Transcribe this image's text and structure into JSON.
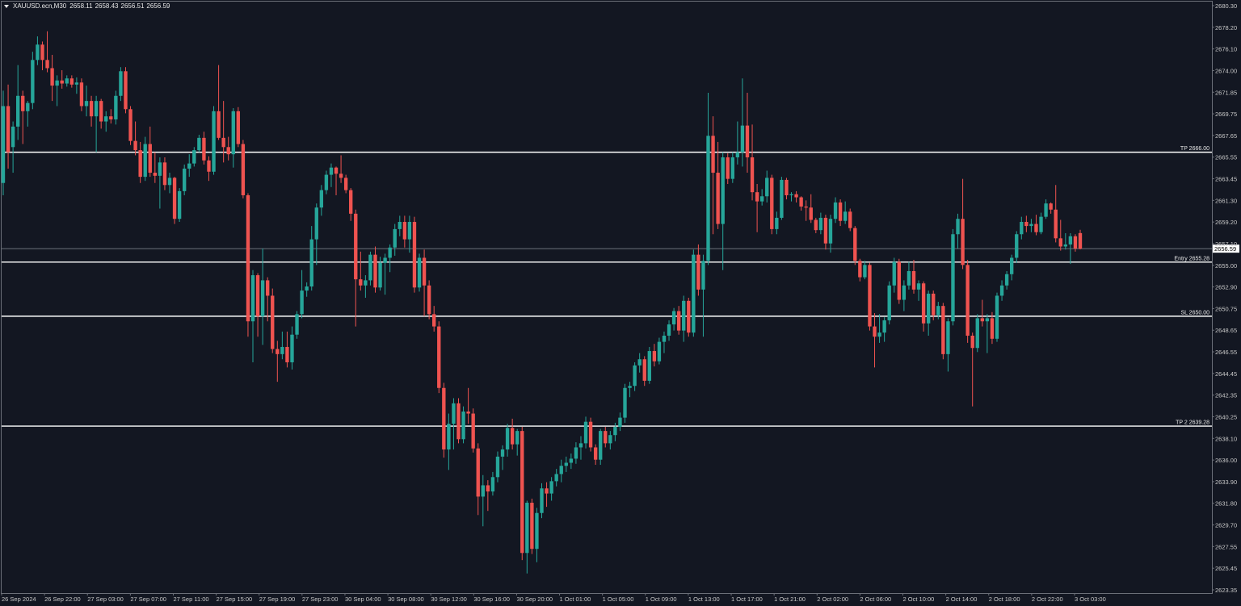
{
  "header": {
    "symbol": "XAUUSD.ecn,M30",
    "open": "2658.11",
    "high": "2658.43",
    "low": "2656.51",
    "close": "2656.59"
  },
  "colors": {
    "background": "#131722",
    "bull": "#26a69a",
    "bear": "#ef5350",
    "level_line": "#ffffff",
    "current_price_line": "#8a8f98",
    "axis_text": "#c8c8c8"
  },
  "chart_data": {
    "type": "candlestick",
    "symbol": "XAUUSD.ecn",
    "timeframe": "M30",
    "ylim": [
      2623.3,
      2680.3
    ],
    "y_ticks": [
      "2680.30",
      "2678.20",
      "2676.10",
      "2674.00",
      "2671.85",
      "2669.75",
      "2667.65",
      "2665.55",
      "2663.45",
      "2661.30",
      "2659.20",
      "2657.10",
      "2655.00",
      "2652.90",
      "2650.75",
      "2648.65",
      "2646.55",
      "2644.45",
      "2642.35",
      "2640.25",
      "2638.10",
      "2636.00",
      "2633.90",
      "2631.80",
      "2629.70",
      "2627.55",
      "2625.45",
      "2623.35"
    ],
    "x_ticks": [
      "26 Sep 2024",
      "26 Sep 22:00",
      "27 Sep 03:00",
      "27 Sep 07:00",
      "27 Sep 11:00",
      "27 Sep 15:00",
      "27 Sep 19:00",
      "27 Sep 23:00",
      "30 Sep 04:00",
      "30 Sep 08:00",
      "30 Sep 12:00",
      "30 Sep 16:00",
      "30 Sep 20:00",
      "1 Oct 01:00",
      "1 Oct 05:00",
      "1 Oct 09:00",
      "1 Oct 13:00",
      "1 Oct 17:00",
      "1 Oct 21:00",
      "2 Oct 02:00",
      "2 Oct 06:00",
      "2 Oct 10:00",
      "2 Oct 14:00",
      "2 Oct 18:00",
      "2 Oct 22:00",
      "3 Oct 03:00"
    ],
    "levels": [
      {
        "label": "TP 2666.00",
        "price": 2666.0
      },
      {
        "label": "Entry 2655.28",
        "price": 2655.28
      },
      {
        "label": "SL 2650.00",
        "price": 2650.0
      },
      {
        "label": "TP 2 2639.28",
        "price": 2639.28
      }
    ],
    "current_price": {
      "label": "2656.59",
      "price": 2656.59
    },
    "ohlc": [
      [
        2663.0,
        2672.0,
        2661.8,
        2670.5
      ],
      [
        2670.5,
        2672.6,
        2664.4,
        2666.0
      ],
      [
        2666.5,
        2669.0,
        2664.0,
        2668.5
      ],
      [
        2668.5,
        2674.5,
        2667.2,
        2671.5
      ],
      [
        2671.5,
        2672.0,
        2666.8,
        2670.0
      ],
      [
        2670.0,
        2671.0,
        2668.5,
        2670.8
      ],
      [
        2670.8,
        2675.8,
        2670.2,
        2675.0
      ],
      [
        2675.0,
        2677.3,
        2674.5,
        2676.5
      ],
      [
        2676.5,
        2676.8,
        2674.0,
        2675.0
      ],
      [
        2675.0,
        2677.8,
        2673.8,
        2674.2
      ],
      [
        2674.2,
        2675.5,
        2671.0,
        2672.5
      ],
      [
        2672.5,
        2673.5,
        2670.5,
        2673.0
      ],
      [
        2673.0,
        2674.0,
        2672.2,
        2672.7
      ],
      [
        2672.7,
        2673.5,
        2672.4,
        2673.2
      ],
      [
        2673.2,
        2673.5,
        2672.3,
        2672.6
      ],
      [
        2672.6,
        2673.3,
        2671.7,
        2672.8
      ],
      [
        2672.8,
        2673.2,
        2670.0,
        2670.5
      ],
      [
        2670.5,
        2672.5,
        2669.5,
        2671.0
      ],
      [
        2671.0,
        2671.5,
        2668.5,
        2669.5
      ],
      [
        2669.5,
        2671.5,
        2666.0,
        2671.0
      ],
      [
        2671.0,
        2671.2,
        2668.3,
        2669.0
      ],
      [
        2669.0,
        2670.0,
        2668.0,
        2669.5
      ],
      [
        2669.5,
        2670.2,
        2668.8,
        2669.2
      ],
      [
        2669.2,
        2672.0,
        2668.7,
        2671.5
      ],
      [
        2671.5,
        2674.3,
        2671.0,
        2673.9
      ],
      [
        2673.9,
        2674.3,
        2669.8,
        2670.2
      ],
      [
        2670.2,
        2670.5,
        2666.7,
        2667.1
      ],
      [
        2667.1,
        2669.0,
        2665.7,
        2666.2
      ],
      [
        2666.2,
        2667.0,
        2663.0,
        2663.6
      ],
      [
        2663.6,
        2667.5,
        2663.2,
        2666.8
      ],
      [
        2666.8,
        2668.5,
        2663.6,
        2664.0
      ],
      [
        2664.0,
        2666.0,
        2663.0,
        2663.7
      ],
      [
        2663.7,
        2665.5,
        2660.5,
        2665.0
      ],
      [
        2665.0,
        2665.5,
        2662.3,
        2662.8
      ],
      [
        2662.8,
        2664.0,
        2662.0,
        2663.5
      ],
      [
        2663.5,
        2663.6,
        2659.0,
        2659.5
      ],
      [
        2659.5,
        2662.5,
        2659.2,
        2662.2
      ],
      [
        2662.2,
        2664.8,
        2661.8,
        2664.4
      ],
      [
        2664.4,
        2665.8,
        2663.6,
        2664.9
      ],
      [
        2664.9,
        2666.5,
        2664.6,
        2666.2
      ],
      [
        2666.2,
        2667.7,
        2666.0,
        2667.4
      ],
      [
        2667.4,
        2668.0,
        2664.8,
        2665.2
      ],
      [
        2665.2,
        2665.6,
        2663.2,
        2664.1
      ],
      [
        2664.1,
        2670.5,
        2663.8,
        2670.0
      ],
      [
        2670.0,
        2674.5,
        2667.2,
        2667.4
      ],
      [
        2667.4,
        2671.0,
        2665.0,
        2666.5
      ],
      [
        2666.5,
        2667.5,
        2665.2,
        2665.8
      ],
      [
        2665.8,
        2670.3,
        2664.5,
        2670.0
      ],
      [
        2670.0,
        2670.4,
        2666.5,
        2666.8
      ],
      [
        2666.8,
        2667.2,
        2661.5,
        2661.8
      ],
      [
        2661.8,
        2662.0,
        2648.0,
        2649.5
      ],
      [
        2649.5,
        2654.5,
        2645.5,
        2654.0
      ],
      [
        2654.0,
        2654.2,
        2648.0,
        2650.0
      ],
      [
        2650.0,
        2656.6,
        2647.2,
        2653.5
      ],
      [
        2653.5,
        2653.8,
        2649.5,
        2652.0
      ],
      [
        2652.0,
        2652.7,
        2646.4,
        2646.8
      ],
      [
        2646.8,
        2647.6,
        2643.6,
        2646.3
      ],
      [
        2646.3,
        2648.5,
        2645.8,
        2647.0
      ],
      [
        2647.0,
        2648.5,
        2645.0,
        2645.5
      ],
      [
        2645.5,
        2649.0,
        2644.8,
        2648.2
      ],
      [
        2648.2,
        2650.5,
        2647.8,
        2650.2
      ],
      [
        2650.2,
        2654.5,
        2649.8,
        2652.5
      ],
      [
        2652.5,
        2653.3,
        2651.9,
        2652.9
      ],
      [
        2652.9,
        2658.8,
        2652.5,
        2657.5
      ],
      [
        2657.5,
        2661.0,
        2655.0,
        2660.6
      ],
      [
        2660.6,
        2662.8,
        2659.8,
        2662.3
      ],
      [
        2662.3,
        2664.2,
        2661.9,
        2663.8
      ],
      [
        2663.8,
        2664.9,
        2662.6,
        2664.5
      ],
      [
        2664.5,
        2664.6,
        2661.8,
        2663.9
      ],
      [
        2663.9,
        2665.7,
        2663.0,
        2663.5
      ],
      [
        2663.5,
        2663.8,
        2662.0,
        2662.3
      ],
      [
        2662.3,
        2662.5,
        2659.3,
        2660.0
      ],
      [
        2660.0,
        2660.4,
        2649.0,
        2653.6
      ],
      [
        2653.6,
        2656.3,
        2652.5,
        2653.0
      ],
      [
        2653.0,
        2654.0,
        2651.8,
        2653.5
      ],
      [
        2653.5,
        2656.3,
        2653.0,
        2656.0
      ],
      [
        2656.0,
        2656.8,
        2652.3,
        2652.8
      ],
      [
        2652.8,
        2655.8,
        2652.5,
        2655.2
      ],
      [
        2655.2,
        2656.1,
        2652.1,
        2655.7
      ],
      [
        2655.7,
        2657.0,
        2654.3,
        2656.7
      ],
      [
        2656.7,
        2659.0,
        2655.9,
        2658.5
      ],
      [
        2658.5,
        2659.8,
        2657.8,
        2659.2
      ],
      [
        2659.2,
        2659.8,
        2656.7,
        2657.5
      ],
      [
        2657.5,
        2659.8,
        2656.2,
        2659.2
      ],
      [
        2659.2,
        2659.7,
        2652.3,
        2652.8
      ],
      [
        2652.8,
        2656.1,
        2652.4,
        2655.7
      ],
      [
        2655.7,
        2656.5,
        2650.0,
        2653.0
      ],
      [
        2653.0,
        2653.5,
        2649.7,
        2650.2
      ],
      [
        2650.2,
        2651.0,
        2648.5,
        2649.0
      ],
      [
        2649.0,
        2649.5,
        2642.5,
        2643.0
      ],
      [
        2643.0,
        2643.5,
        2636.2,
        2637.0
      ],
      [
        2637.0,
        2640.5,
        2635.0,
        2639.5
      ],
      [
        2639.5,
        2642.0,
        2637.0,
        2641.5
      ],
      [
        2641.5,
        2642.0,
        2637.6,
        2638.0
      ],
      [
        2638.0,
        2641.2,
        2637.6,
        2640.7
      ],
      [
        2640.7,
        2643.0,
        2639.5,
        2640.5
      ],
      [
        2640.5,
        2641.0,
        2636.7,
        2637.1
      ],
      [
        2637.1,
        2637.6,
        2630.6,
        2632.4
      ],
      [
        2632.4,
        2634.5,
        2629.5,
        2633.5
      ],
      [
        2633.5,
        2634.0,
        2631.0,
        2632.9
      ],
      [
        2632.9,
        2634.8,
        2632.5,
        2634.3
      ],
      [
        2634.3,
        2636.8,
        2633.8,
        2636.3
      ],
      [
        2636.3,
        2637.4,
        2635.0,
        2637.0
      ],
      [
        2637.0,
        2639.5,
        2636.3,
        2639.1
      ],
      [
        2639.1,
        2640.0,
        2637.0,
        2637.5
      ],
      [
        2637.5,
        2639.0,
        2636.4,
        2638.8
      ],
      [
        2638.8,
        2639.2,
        2626.2,
        2626.9
      ],
      [
        2626.9,
        2632.0,
        2624.9,
        2631.8
      ],
      [
        2631.8,
        2632.2,
        2626.8,
        2627.3
      ],
      [
        2627.3,
        2631.3,
        2626.0,
        2630.8
      ],
      [
        2630.8,
        2633.7,
        2630.3,
        2633.2
      ],
      [
        2633.2,
        2633.8,
        2631.4,
        2632.7
      ],
      [
        2632.7,
        2634.3,
        2632.0,
        2633.9
      ],
      [
        2633.9,
        2635.1,
        2633.4,
        2634.6
      ],
      [
        2634.6,
        2636.0,
        2633.8,
        2635.4
      ],
      [
        2635.4,
        2636.3,
        2634.8,
        2635.7
      ],
      [
        2635.7,
        2636.6,
        2635.1,
        2636.1
      ],
      [
        2636.1,
        2637.7,
        2635.6,
        2637.2
      ],
      [
        2637.2,
        2638.3,
        2636.0,
        2637.6
      ],
      [
        2637.6,
        2640.2,
        2637.1,
        2639.7
      ],
      [
        2639.7,
        2640.1,
        2636.8,
        2637.2
      ],
      [
        2637.2,
        2637.5,
        2635.5,
        2636.0
      ],
      [
        2636.0,
        2639.0,
        2635.5,
        2638.8
      ],
      [
        2638.8,
        2639.2,
        2637.2,
        2637.6
      ],
      [
        2637.6,
        2638.8,
        2637.0,
        2638.4
      ],
      [
        2638.4,
        2639.6,
        2637.8,
        2639.2
      ],
      [
        2639.2,
        2640.6,
        2638.8,
        2640.1
      ],
      [
        2640.1,
        2643.4,
        2639.6,
        2643.0
      ],
      [
        2643.0,
        2643.6,
        2642.1,
        2643.2
      ],
      [
        2643.2,
        2645.5,
        2642.7,
        2645.2
      ],
      [
        2645.2,
        2646.4,
        2644.5,
        2645.8
      ],
      [
        2645.8,
        2646.1,
        2643.2,
        2643.7
      ],
      [
        2643.7,
        2647.0,
        2643.4,
        2646.6
      ],
      [
        2646.6,
        2647.3,
        2645.1,
        2645.6
      ],
      [
        2645.6,
        2647.9,
        2645.3,
        2647.5
      ],
      [
        2647.5,
        2648.5,
        2646.4,
        2648.1
      ],
      [
        2648.1,
        2649.6,
        2647.6,
        2649.2
      ],
      [
        2649.2,
        2650.8,
        2648.6,
        2650.5
      ],
      [
        2650.5,
        2651.0,
        2648.2,
        2648.6
      ],
      [
        2648.6,
        2652.0,
        2647.5,
        2651.5
      ],
      [
        2651.5,
        2651.8,
        2648.0,
        2648.4
      ],
      [
        2648.4,
        2656.5,
        2648.0,
        2656.0
      ],
      [
        2656.0,
        2657.0,
        2652.0,
        2652.6
      ],
      [
        2652.6,
        2656.0,
        2648.0,
        2655.4
      ],
      [
        2655.4,
        2671.8,
        2655.0,
        2667.6
      ],
      [
        2667.6,
        2669.5,
        2658.0,
        2664.0
      ],
      [
        2664.0,
        2667.0,
        2658.5,
        2659.0
      ],
      [
        2659.0,
        2666.0,
        2654.5,
        2665.5
      ],
      [
        2665.5,
        2665.9,
        2662.9,
        2663.4
      ],
      [
        2663.4,
        2666.0,
        2663.0,
        2665.5
      ],
      [
        2665.5,
        2669.0,
        2664.8,
        2666.0
      ],
      [
        2666.0,
        2673.2,
        2664.6,
        2668.6
      ],
      [
        2668.6,
        2671.8,
        2664.0,
        2665.5
      ],
      [
        2665.5,
        2668.7,
        2661.3,
        2662.1
      ],
      [
        2662.1,
        2662.9,
        2658.2,
        2661.2
      ],
      [
        2661.2,
        2662.4,
        2660.8,
        2661.7
      ],
      [
        2661.7,
        2664.2,
        2661.1,
        2663.5
      ],
      [
        2663.5,
        2663.8,
        2658.0,
        2658.5
      ],
      [
        2658.5,
        2660.2,
        2658.0,
        2659.6
      ],
      [
        2659.6,
        2663.6,
        2659.4,
        2663.3
      ],
      [
        2663.3,
        2663.5,
        2661.4,
        2661.8
      ],
      [
        2661.8,
        2662.1,
        2661.2,
        2661.9
      ],
      [
        2661.9,
        2662.2,
        2661.1,
        2661.6
      ],
      [
        2661.6,
        2661.7,
        2660.3,
        2660.7
      ],
      [
        2660.7,
        2661.3,
        2659.3,
        2660.6
      ],
      [
        2660.6,
        2661.9,
        2659.1,
        2659.4
      ],
      [
        2659.4,
        2659.6,
        2658.1,
        2658.4
      ],
      [
        2658.4,
        2660.1,
        2658.0,
        2659.6
      ],
      [
        2659.6,
        2659.9,
        2656.5,
        2657.1
      ],
      [
        2657.1,
        2659.9,
        2656.2,
        2659.5
      ],
      [
        2659.5,
        2661.6,
        2659.1,
        2661.1
      ],
      [
        2661.1,
        2661.4,
        2658.8,
        2659.3
      ],
      [
        2659.3,
        2661.2,
        2659.0,
        2660.2
      ],
      [
        2660.2,
        2660.5,
        2658.3,
        2658.6
      ],
      [
        2658.6,
        2658.8,
        2655.0,
        2655.4
      ],
      [
        2655.4,
        2655.6,
        2653.4,
        2653.8
      ],
      [
        2653.8,
        2655.4,
        2653.6,
        2655.0
      ],
      [
        2655.0,
        2655.2,
        2648.6,
        2649.0
      ],
      [
        2649.0,
        2650.3,
        2645.0,
        2648.0
      ],
      [
        2648.0,
        2650.2,
        2647.4,
        2648.4
      ],
      [
        2648.4,
        2649.9,
        2647.5,
        2649.6
      ],
      [
        2649.6,
        2653.4,
        2649.2,
        2653.0
      ],
      [
        2653.0,
        2655.7,
        2652.3,
        2655.3
      ],
      [
        2655.3,
        2655.6,
        2651.2,
        2651.6
      ],
      [
        2651.6,
        2653.5,
        2650.5,
        2653.0
      ],
      [
        2653.0,
        2655.3,
        2652.6,
        2654.4
      ],
      [
        2654.4,
        2655.5,
        2652.2,
        2652.6
      ],
      [
        2652.6,
        2653.5,
        2651.5,
        2653.2
      ],
      [
        2653.2,
        2653.4,
        2648.5,
        2649.3
      ],
      [
        2649.3,
        2652.5,
        2648.1,
        2652.2
      ],
      [
        2652.2,
        2652.5,
        2649.6,
        2650.1
      ],
      [
        2650.1,
        2651.4,
        2649.7,
        2651.0
      ],
      [
        2651.0,
        2651.3,
        2645.8,
        2646.3
      ],
      [
        2646.3,
        2649.8,
        2644.6,
        2649.5
      ],
      [
        2649.5,
        2658.5,
        2649.1,
        2658.0
      ],
      [
        2658.0,
        2660.0,
        2656.6,
        2659.5
      ],
      [
        2659.5,
        2663.4,
        2654.6,
        2655.0
      ],
      [
        2655.0,
        2655.5,
        2647.4,
        2648.1
      ],
      [
        2648.1,
        2648.4,
        2641.2,
        2646.9
      ],
      [
        2646.9,
        2650.2,
        2646.5,
        2649.8
      ],
      [
        2649.8,
        2651.6,
        2649.0,
        2649.5
      ],
      [
        2649.5,
        2650.2,
        2646.4,
        2649.8
      ],
      [
        2649.8,
        2650.4,
        2647.3,
        2647.8
      ],
      [
        2647.8,
        2652.3,
        2647.5,
        2652.0
      ],
      [
        2652.0,
        2653.5,
        2651.5,
        2653.0
      ],
      [
        2653.0,
        2654.4,
        2652.6,
        2654.1
      ],
      [
        2654.1,
        2656.0,
        2653.5,
        2655.7
      ],
      [
        2655.7,
        2658.3,
        2655.2,
        2658.0
      ],
      [
        2658.0,
        2659.7,
        2657.5,
        2659.2
      ],
      [
        2659.2,
        2659.8,
        2658.2,
        2658.8
      ],
      [
        2658.8,
        2659.5,
        2658.2,
        2659.0
      ],
      [
        2659.0,
        2659.9,
        2657.9,
        2658.2
      ],
      [
        2658.2,
        2660.1,
        2658.0,
        2659.7
      ],
      [
        2659.7,
        2661.4,
        2659.5,
        2661.0
      ],
      [
        2661.0,
        2661.1,
        2660.0,
        2660.4
      ],
      [
        2660.4,
        2662.8,
        2657.2,
        2657.6
      ],
      [
        2657.6,
        2659.4,
        2656.4,
        2656.8
      ],
      [
        2656.8,
        2658.1,
        2656.5,
        2657.0
      ],
      [
        2657.0,
        2658.1,
        2655.1,
        2657.8
      ],
      [
        2657.8,
        2658.0,
        2656.3,
        2656.6
      ],
      [
        2658.11,
        2658.43,
        2656.51,
        2656.59
      ]
    ]
  }
}
